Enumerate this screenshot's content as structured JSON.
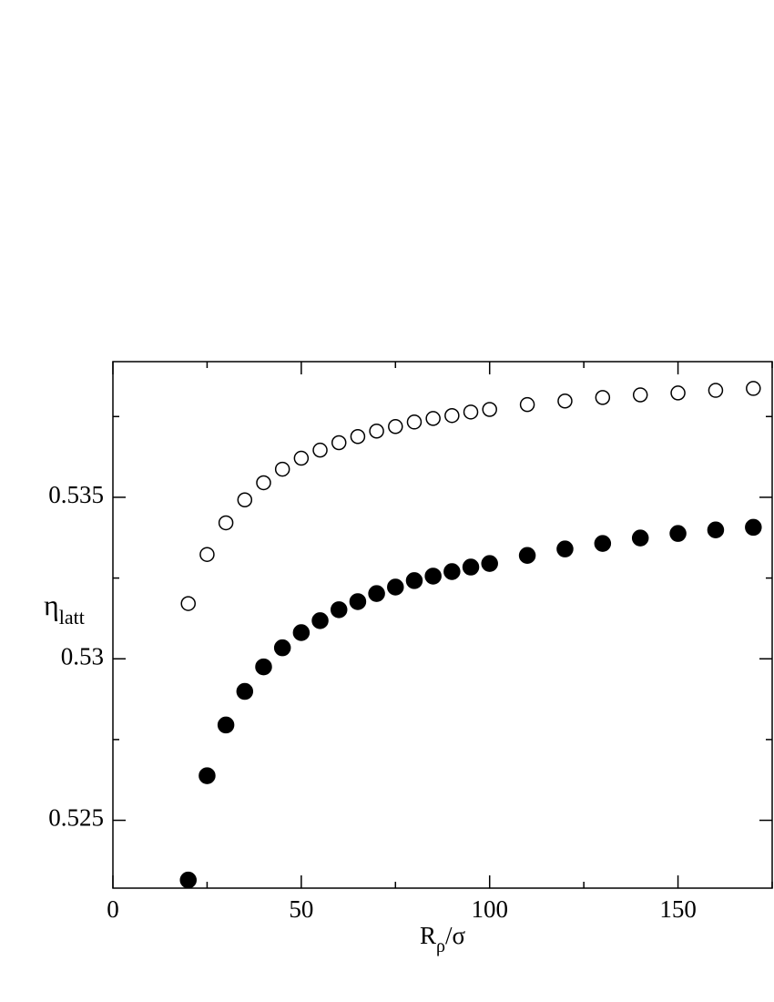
{
  "chart_data": {
    "type": "scatter",
    "x_label": "R",
    "x_label_sub": "ρ",
    "x_label_rest": "/σ",
    "y_label": "η",
    "y_label_sub": "latt",
    "xlim": [
      0,
      175
    ],
    "xticks": [
      0,
      50,
      100,
      150
    ],
    "xminor": [
      25,
      75,
      125,
      175
    ],
    "ylim": [
      0.5229,
      0.5392
    ],
    "yticks": [
      0.525,
      0.53,
      0.535
    ],
    "yminor": [
      0.5275,
      0.5325,
      0.5375
    ],
    "x": [
      20,
      25,
      30,
      35,
      40,
      45,
      50,
      55,
      60,
      65,
      70,
      75,
      80,
      85,
      90,
      95,
      100,
      110,
      120,
      130,
      140,
      150,
      160,
      170
    ],
    "series": [
      {
        "color": "#000000",
        "marker": "open",
        "values": [
          0.53171,
          0.53323,
          0.53421,
          0.53492,
          0.53545,
          0.53587,
          0.53621,
          0.53646,
          0.53669,
          0.53688,
          0.53705,
          0.53719,
          0.53733,
          0.53744,
          0.53753,
          0.53764,
          0.53772,
          0.53787,
          0.53798,
          0.53809,
          0.53817,
          0.53823,
          0.53831,
          0.53837
        ]
      },
      {
        "color": "#000000",
        "marker": "filled",
        "values": [
          0.52315,
          0.52638,
          0.52795,
          0.52899,
          0.52975,
          0.53034,
          0.53081,
          0.53118,
          0.53152,
          0.53177,
          0.53202,
          0.53222,
          0.53242,
          0.53256,
          0.5327,
          0.53284,
          0.53295,
          0.5332,
          0.5334,
          0.53357,
          0.53374,
          0.53388,
          0.53399,
          0.53407
        ]
      }
    ]
  }
}
